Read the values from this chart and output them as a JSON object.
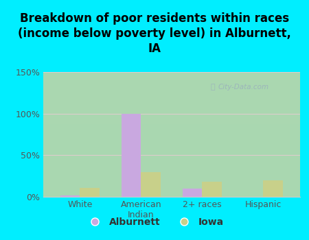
{
  "title": "Breakdown of poor residents within races\n(income below poverty level) in Alburnett,\nIA",
  "categories": [
    "White",
    "American\nIndian",
    "2+ races",
    "Hispanic"
  ],
  "alburnett_values": [
    2,
    100,
    10,
    0
  ],
  "iowa_values": [
    11,
    30,
    18,
    20
  ],
  "alburnett_color": "#c9a8e0",
  "iowa_color": "#c8d08a",
  "ylim": [
    0,
    150
  ],
  "yticks": [
    0,
    50,
    100,
    150
  ],
  "ytick_labels": [
    "0%",
    "50%",
    "100%",
    "150%"
  ],
  "background_outer": "#00eeff",
  "bar_width": 0.32,
  "legend_labels": [
    "Alburnett",
    "Iowa"
  ],
  "watermark": "City-Data.com",
  "title_fontsize": 12,
  "axis_label_fontsize": 9,
  "tick_fontsize": 9
}
